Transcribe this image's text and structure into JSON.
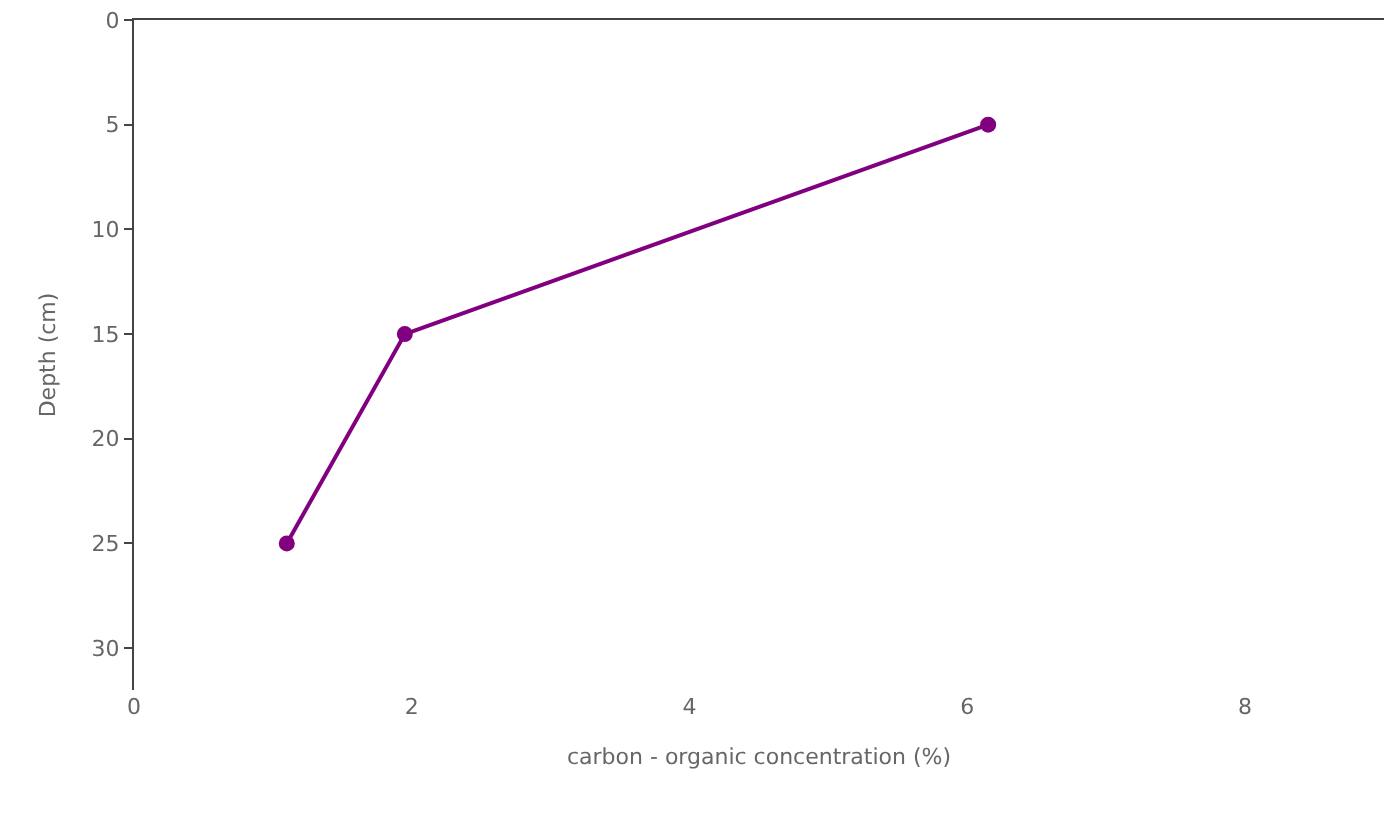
{
  "chart_data": {
    "type": "line",
    "xlabel": "carbon - organic concentration (%)",
    "ylabel": "Depth (cm)",
    "x": [
      1.1,
      1.95,
      6.15
    ],
    "series": [
      {
        "color": "#800080",
        "values": [
          25,
          15,
          5
        ]
      }
    ],
    "xlim": [
      0,
      9
    ],
    "xticks": [
      0,
      2,
      4,
      6,
      8
    ],
    "ylim": [
      32,
      0
    ],
    "yticks": [
      0,
      5,
      10,
      15,
      20,
      25,
      30
    ],
    "marker": "circle",
    "line_style": "solid"
  }
}
